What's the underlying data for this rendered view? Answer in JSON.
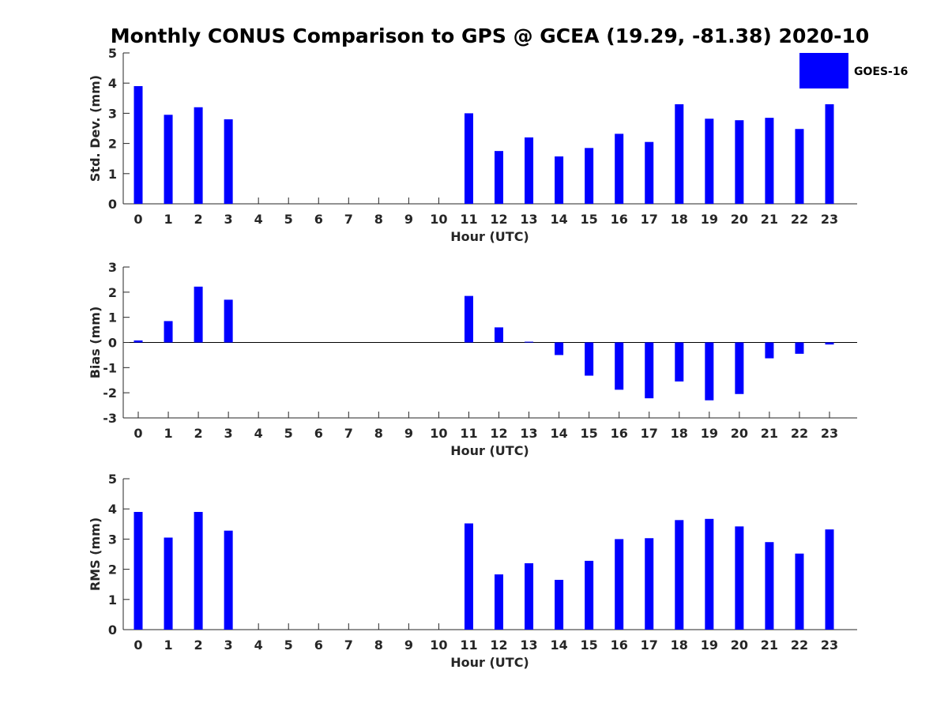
{
  "title": "Monthly CONUS Comparison to GPS @ GCEA (19.29, -81.38) 2020-10",
  "legend": {
    "label": "GOES-16",
    "color": "#0000ff"
  },
  "chart_data": [
    {
      "type": "bar",
      "xlabel": "Hour (UTC)",
      "ylabel": "Std. Dev. (mm)",
      "ylim": [
        0,
        5
      ],
      "yticks": [
        "0",
        "1",
        "2",
        "3",
        "4",
        "5"
      ],
      "categories": [
        "0",
        "1",
        "2",
        "3",
        "4",
        "5",
        "6",
        "7",
        "8",
        "9",
        "10",
        "11",
        "12",
        "13",
        "14",
        "15",
        "16",
        "17",
        "18",
        "19",
        "20",
        "21",
        "22",
        "23"
      ],
      "series": [
        {
          "name": "GOES-16",
          "values": [
            3.9,
            2.95,
            3.2,
            2.8,
            null,
            null,
            null,
            null,
            null,
            null,
            null,
            3.0,
            1.75,
            2.2,
            1.57,
            1.85,
            2.32,
            2.05,
            3.3,
            2.82,
            2.77,
            2.85,
            2.48,
            3.3
          ]
        }
      ]
    },
    {
      "type": "bar",
      "xlabel": "Hour (UTC)",
      "ylabel": "Bias (mm)",
      "ylim": [
        -3,
        3
      ],
      "yticks": [
        "-3",
        "-2",
        "-1",
        "0",
        "1",
        "2",
        "3"
      ],
      "categories": [
        "0",
        "1",
        "2",
        "3",
        "4",
        "5",
        "6",
        "7",
        "8",
        "9",
        "10",
        "11",
        "12",
        "13",
        "14",
        "15",
        "16",
        "17",
        "18",
        "19",
        "20",
        "21",
        "22",
        "23"
      ],
      "series": [
        {
          "name": "GOES-16",
          "values": [
            0.08,
            0.85,
            2.22,
            1.7,
            null,
            null,
            null,
            null,
            null,
            null,
            null,
            1.85,
            0.6,
            0.03,
            -0.5,
            -1.32,
            -1.88,
            -2.22,
            -1.55,
            -2.3,
            -2.05,
            -0.63,
            -0.45,
            -0.08
          ]
        }
      ]
    },
    {
      "type": "bar",
      "xlabel": "Hour (UTC)",
      "ylabel": "RMS (mm)",
      "ylim": [
        0,
        5
      ],
      "yticks": [
        "0",
        "1",
        "2",
        "3",
        "4",
        "5"
      ],
      "categories": [
        "0",
        "1",
        "2",
        "3",
        "4",
        "5",
        "6",
        "7",
        "8",
        "9",
        "10",
        "11",
        "12",
        "13",
        "14",
        "15",
        "16",
        "17",
        "18",
        "19",
        "20",
        "21",
        "22",
        "23"
      ],
      "series": [
        {
          "name": "GOES-16",
          "values": [
            3.9,
            3.05,
            3.9,
            3.28,
            null,
            null,
            null,
            null,
            null,
            null,
            null,
            3.52,
            1.83,
            2.2,
            1.65,
            2.28,
            3.0,
            3.03,
            3.63,
            3.67,
            3.42,
            2.9,
            2.52,
            3.32
          ]
        }
      ]
    }
  ]
}
